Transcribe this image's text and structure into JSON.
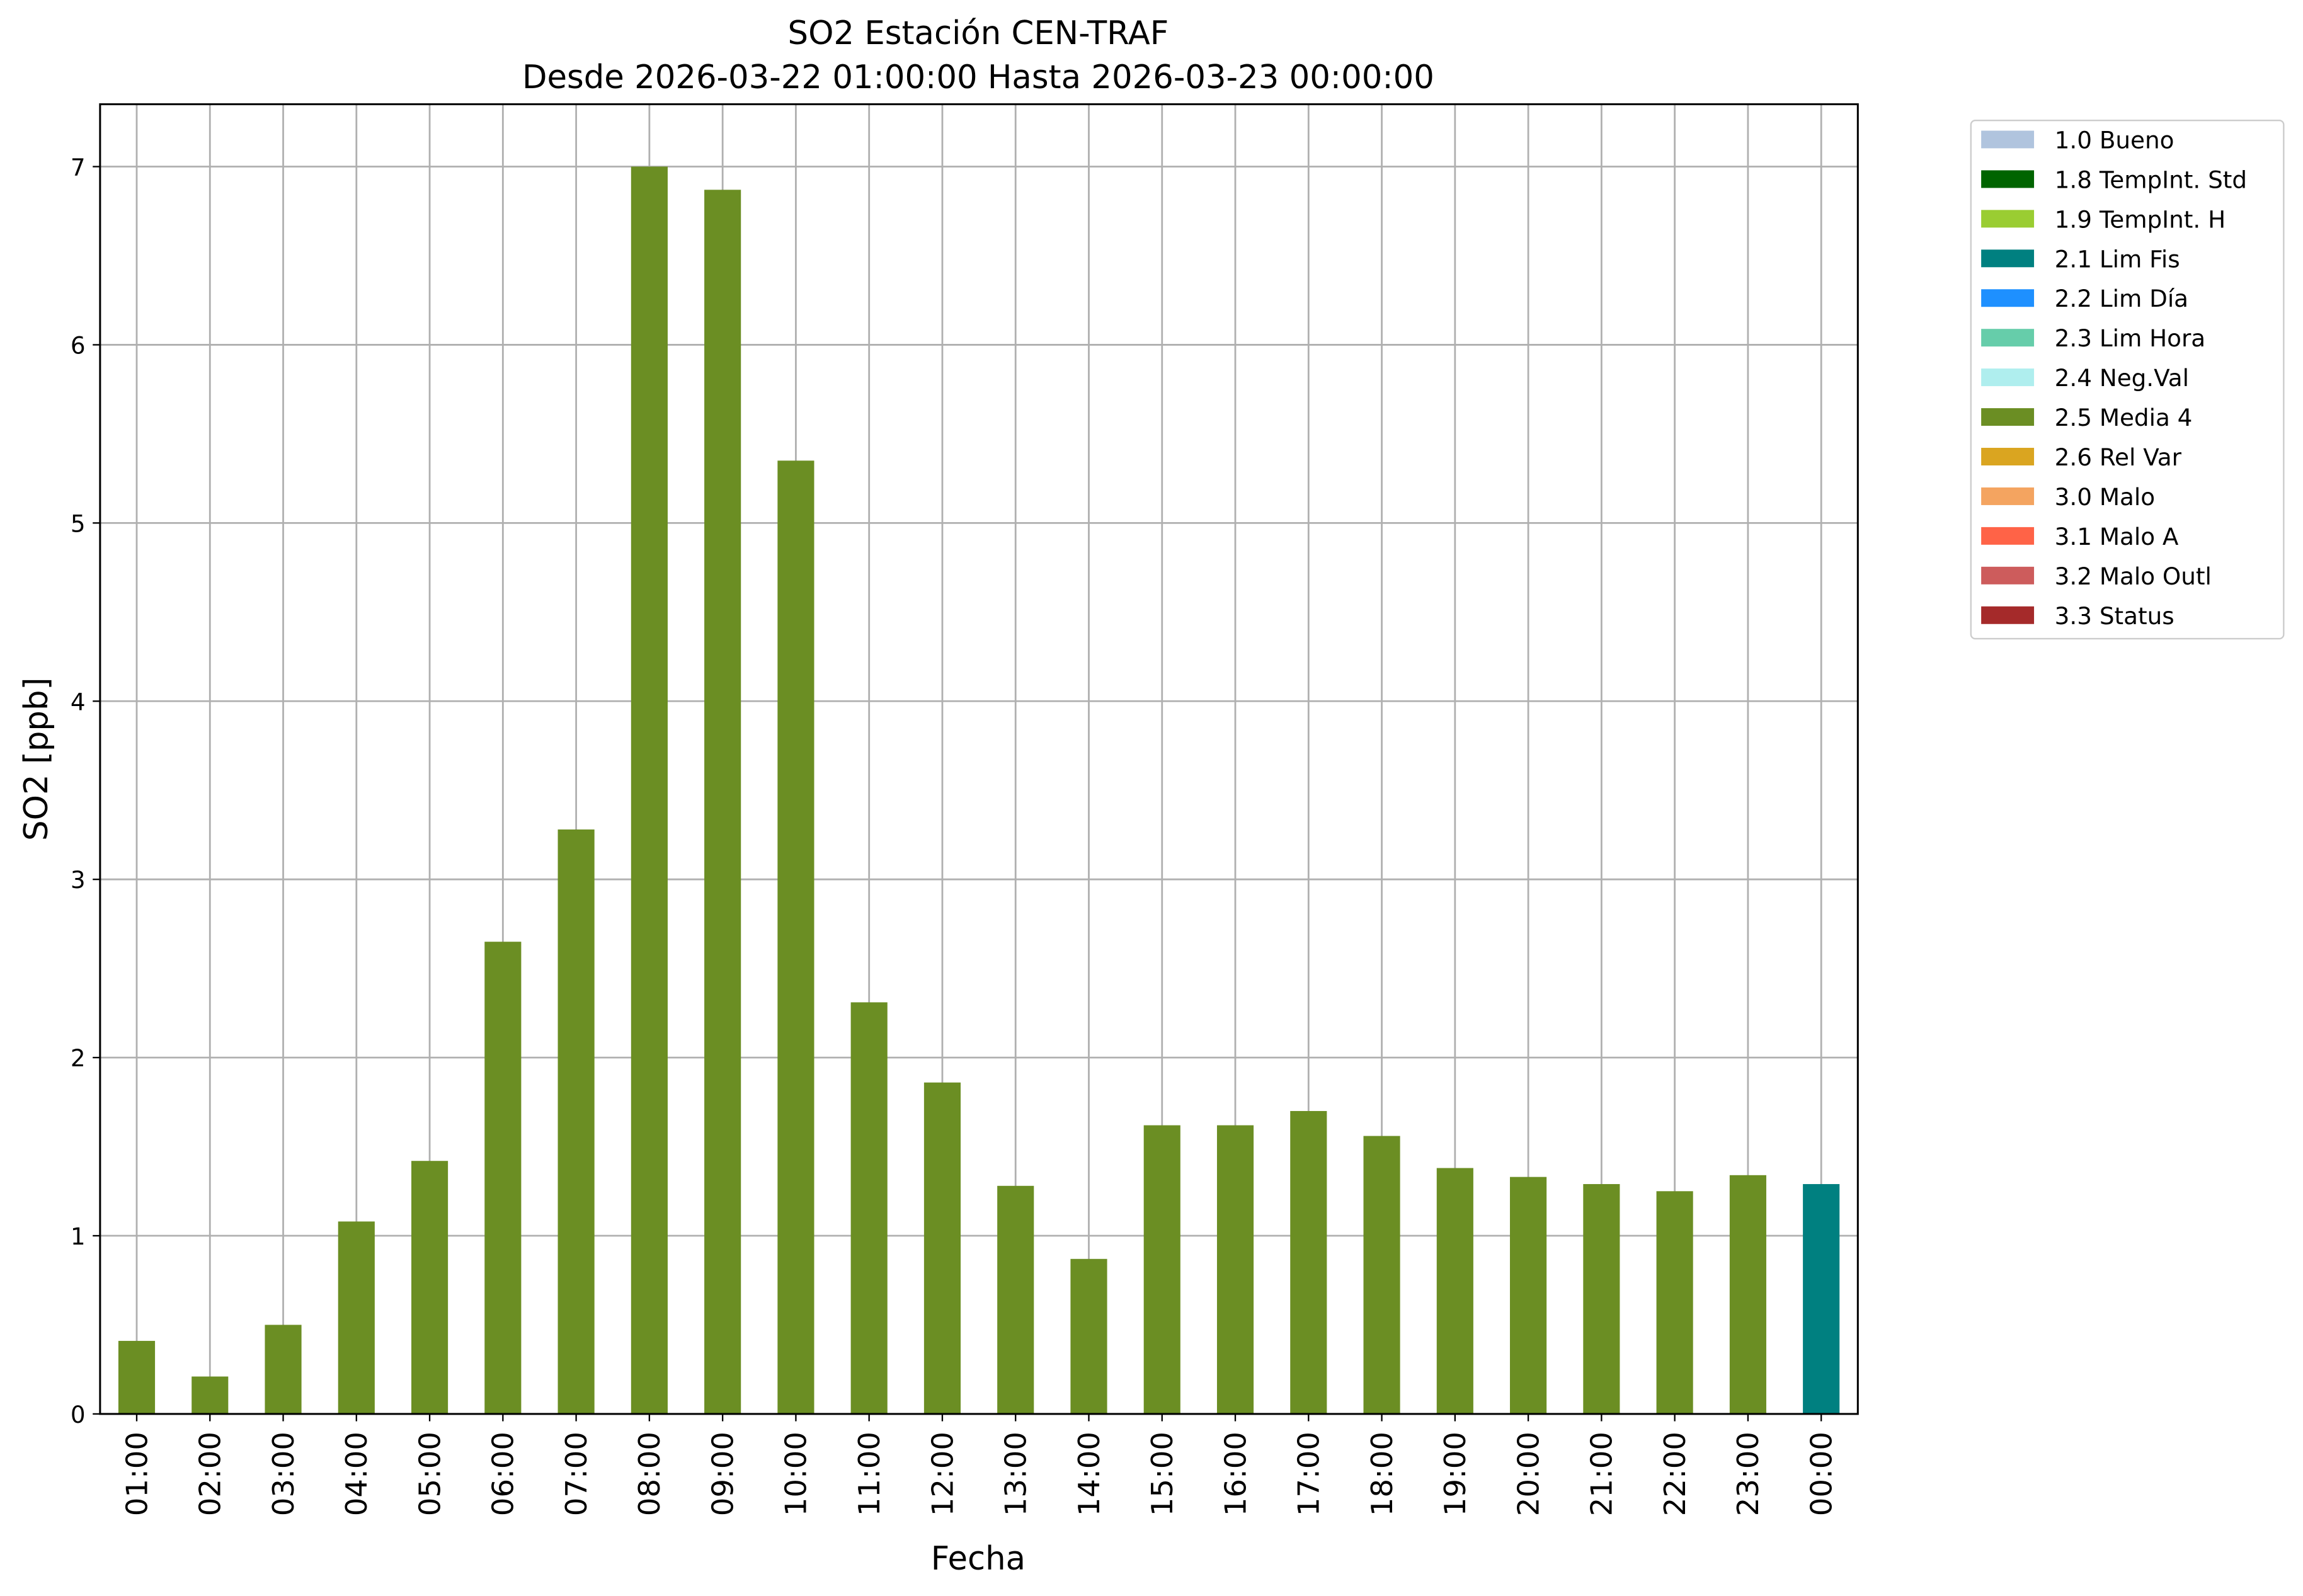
{
  "chart_data": {
    "type": "bar",
    "title": "SO2 Estación CEN-TRAF",
    "subtitle": "Desde 2026-03-22 01:00:00 Hasta 2026-03-23 00:00:00",
    "x_label": "Fecha",
    "y_label": "SO2 [ppb]",
    "categories": [
      "01:00",
      "02:00",
      "03:00",
      "04:00",
      "05:00",
      "06:00",
      "07:00",
      "08:00",
      "09:00",
      "10:00",
      "11:00",
      "12:00",
      "13:00",
      "14:00",
      "15:00",
      "16:00",
      "17:00",
      "18:00",
      "19:00",
      "20:00",
      "21:00",
      "22:00",
      "23:00",
      "00:00"
    ],
    "values": [
      0.41,
      0.21,
      0.5,
      1.08,
      1.42,
      2.65,
      3.28,
      7.0,
      6.87,
      5.35,
      2.31,
      1.86,
      1.28,
      0.87,
      1.62,
      1.62,
      1.7,
      1.56,
      1.38,
      1.33,
      1.29,
      1.25,
      1.34,
      1.29
    ],
    "bar_colors": [
      "#6b8e23",
      "#6b8e23",
      "#6b8e23",
      "#6b8e23",
      "#6b8e23",
      "#6b8e23",
      "#6b8e23",
      "#6b8e23",
      "#6b8e23",
      "#6b8e23",
      "#6b8e23",
      "#6b8e23",
      "#6b8e23",
      "#6b8e23",
      "#6b8e23",
      "#6b8e23",
      "#6b8e23",
      "#6b8e23",
      "#6b8e23",
      "#6b8e23",
      "#6b8e23",
      "#6b8e23",
      "#6b8e23",
      "#008080"
    ],
    "ylim": [
      0,
      7.35
    ],
    "yticks": [
      0,
      1,
      2,
      3,
      4,
      5,
      6,
      7
    ],
    "grid": true,
    "legend_position": "outside-right",
    "legend": [
      {
        "name": "1.0 Bueno",
        "color": "#b0c4de"
      },
      {
        "name": "1.8 TempInt. Std",
        "color": "#006400"
      },
      {
        "name": "1.9 TempInt. H",
        "color": "#9acd32"
      },
      {
        "name": "2.1 Lim Fis",
        "color": "#008080"
      },
      {
        "name": "2.2 Lim Día",
        "color": "#1e90ff"
      },
      {
        "name": "2.3 Lim Hora",
        "color": "#66cdaa"
      },
      {
        "name": "2.4 Neg.Val",
        "color": "#afeeee"
      },
      {
        "name": "2.5 Media 4",
        "color": "#6b8e23"
      },
      {
        "name": "2.6 Rel Var",
        "color": "#daa520"
      },
      {
        "name": "3.0 Malo",
        "color": "#f4a460"
      },
      {
        "name": "3.1 Malo A",
        "color": "#ff6347"
      },
      {
        "name": "3.2 Malo Outl",
        "color": "#cd5c5c"
      },
      {
        "name": "3.3 Status",
        "color": "#a52a2a"
      }
    ]
  }
}
